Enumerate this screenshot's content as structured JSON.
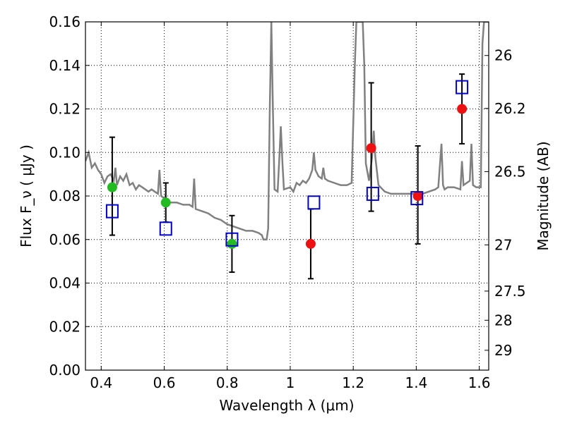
{
  "chart_data": {
    "type": "scatter",
    "xlabel": "Wavelength  λ (μm)",
    "ylabel": "Flux  F_ν  ( μJy )",
    "ylabel_right": "Magnitude (AB)",
    "xlim": [
      0.35,
      1.63
    ],
    "ylim": [
      0,
      0.16
    ],
    "grid": true,
    "x_ticks": [
      {
        "value": 0.4,
        "label": "0.4"
      },
      {
        "value": 0.6,
        "label": "0.6"
      },
      {
        "value": 0.8,
        "label": "0.8"
      },
      {
        "value": 1.0,
        "label": "1"
      },
      {
        "value": 1.2,
        "label": "1.2"
      },
      {
        "value": 1.4,
        "label": "1.4"
      },
      {
        "value": 1.6,
        "label": "1.6"
      }
    ],
    "y_ticks": [
      {
        "value": 0.0,
        "label": "0.00"
      },
      {
        "value": 0.02,
        "label": "0.02"
      },
      {
        "value": 0.04,
        "label": "0.04"
      },
      {
        "value": 0.06,
        "label": "0.06"
      },
      {
        "value": 0.08,
        "label": "0.08"
      },
      {
        "value": 0.1,
        "label": "0.10"
      },
      {
        "value": 0.12,
        "label": "0.12"
      },
      {
        "value": 0.14,
        "label": "0.14"
      },
      {
        "value": 0.16,
        "label": "0.16"
      }
    ],
    "right_ticks": [
      {
        "value": 26,
        "label": "26"
      },
      {
        "value": 26.2,
        "label": "26.2"
      },
      {
        "value": 26.5,
        "label": "26.5"
      },
      {
        "value": 27,
        "label": "27"
      },
      {
        "value": 27.5,
        "label": "27.5"
      },
      {
        "value": 28,
        "label": "28"
      },
      {
        "value": 29,
        "label": "29"
      }
    ],
    "spectrum": {
      "color": "#808080",
      "points": [
        [
          0.35,
          0.096
        ],
        [
          0.36,
          0.1
        ],
        [
          0.37,
          0.093
        ],
        [
          0.38,
          0.095
        ],
        [
          0.39,
          0.092
        ],
        [
          0.4,
          0.09
        ],
        [
          0.41,
          0.086
        ],
        [
          0.42,
          0.089
        ],
        [
          0.43,
          0.09
        ],
        [
          0.44,
          0.087
        ],
        [
          0.445,
          0.093
        ],
        [
          0.45,
          0.085
        ],
        [
          0.46,
          0.089
        ],
        [
          0.47,
          0.087
        ],
        [
          0.48,
          0.09
        ],
        [
          0.49,
          0.085
        ],
        [
          0.5,
          0.086
        ],
        [
          0.51,
          0.083
        ],
        [
          0.52,
          0.085
        ],
        [
          0.53,
          0.084
        ],
        [
          0.54,
          0.083
        ],
        [
          0.55,
          0.082
        ],
        [
          0.56,
          0.083
        ],
        [
          0.57,
          0.082
        ],
        [
          0.58,
          0.081
        ],
        [
          0.585,
          0.092
        ],
        [
          0.59,
          0.08
        ],
        [
          0.6,
          0.079
        ],
        [
          0.62,
          0.077
        ],
        [
          0.64,
          0.077
        ],
        [
          0.66,
          0.076
        ],
        [
          0.68,
          0.076
        ],
        [
          0.69,
          0.075
        ],
        [
          0.695,
          0.088
        ],
        [
          0.7,
          0.074
        ],
        [
          0.72,
          0.073
        ],
        [
          0.74,
          0.072
        ],
        [
          0.76,
          0.07
        ],
        [
          0.78,
          0.069
        ],
        [
          0.8,
          0.067
        ],
        [
          0.82,
          0.066
        ],
        [
          0.84,
          0.065
        ],
        [
          0.86,
          0.064
        ],
        [
          0.88,
          0.064
        ],
        [
          0.9,
          0.063
        ],
        [
          0.91,
          0.062
        ],
        [
          0.915,
          0.06
        ],
        [
          0.925,
          0.06
        ],
        [
          0.93,
          0.065
        ],
        [
          0.935,
          0.12
        ],
        [
          0.94,
          0.16
        ],
        [
          0.945,
          0.12
        ],
        [
          0.95,
          0.083
        ],
        [
          0.96,
          0.082
        ],
        [
          0.965,
          0.096
        ],
        [
          0.97,
          0.112
        ],
        [
          0.975,
          0.096
        ],
        [
          0.98,
          0.083
        ],
        [
          1.0,
          0.084
        ],
        [
          1.01,
          0.082
        ],
        [
          1.02,
          0.086
        ],
        [
          1.03,
          0.085
        ],
        [
          1.04,
          0.087
        ],
        [
          1.05,
          0.086
        ],
        [
          1.06,
          0.088
        ],
        [
          1.07,
          0.092
        ],
        [
          1.075,
          0.1
        ],
        [
          1.08,
          0.092
        ],
        [
          1.09,
          0.089
        ],
        [
          1.1,
          0.088
        ],
        [
          1.105,
          0.093
        ],
        [
          1.11,
          0.088
        ],
        [
          1.12,
          0.087
        ],
        [
          1.14,
          0.086
        ],
        [
          1.16,
          0.085
        ],
        [
          1.18,
          0.085
        ],
        [
          1.195,
          0.086
        ],
        [
          1.205,
          0.14
        ],
        [
          1.21,
          0.16
        ],
        [
          1.23,
          0.16
        ],
        [
          1.235,
          0.14
        ],
        [
          1.24,
          0.095
        ],
        [
          1.25,
          0.087
        ],
        [
          1.26,
          0.098
        ],
        [
          1.265,
          0.11
        ],
        [
          1.27,
          0.098
        ],
        [
          1.28,
          0.085
        ],
        [
          1.3,
          0.082
        ],
        [
          1.32,
          0.081
        ],
        [
          1.34,
          0.081
        ],
        [
          1.36,
          0.081
        ],
        [
          1.38,
          0.081
        ],
        [
          1.4,
          0.081
        ],
        [
          1.42,
          0.081
        ],
        [
          1.44,
          0.082
        ],
        [
          1.46,
          0.083
        ],
        [
          1.47,
          0.084
        ],
        [
          1.48,
          0.104
        ],
        [
          1.485,
          0.085
        ],
        [
          1.49,
          0.083
        ],
        [
          1.5,
          0.084
        ],
        [
          1.52,
          0.084
        ],
        [
          1.54,
          0.083
        ],
        [
          1.545,
          0.096
        ],
        [
          1.55,
          0.085
        ],
        [
          1.57,
          0.087
        ],
        [
          1.575,
          0.104
        ],
        [
          1.58,
          0.085
        ],
        [
          1.59,
          0.084
        ],
        [
          1.605,
          0.084
        ],
        [
          1.61,
          0.15
        ],
        [
          1.615,
          0.16
        ],
        [
          1.62,
          0.16
        ],
        [
          1.63,
          0.16
        ]
      ]
    },
    "measured_green": {
      "color": "#22bb22",
      "points": [
        {
          "x": 0.435,
          "y": 0.084,
          "err_low": 0.062,
          "err_high": 0.107
        },
        {
          "x": 0.605,
          "y": 0.077,
          "err_low": 0.068,
          "err_high": 0.086
        },
        {
          "x": 0.815,
          "y": 0.058,
          "err_low": 0.045,
          "err_high": 0.071
        }
      ]
    },
    "measured_red": {
      "color": "#ee1111",
      "points": [
        {
          "x": 1.065,
          "y": 0.058,
          "err_low": 0.042,
          "err_high": 0.074
        },
        {
          "x": 1.257,
          "y": 0.102,
          "err_low": 0.073,
          "err_high": 0.132
        },
        {
          "x": 1.405,
          "y": 0.08,
          "err_low": 0.058,
          "err_high": 0.103
        },
        {
          "x": 1.545,
          "y": 0.12,
          "err_low": 0.104,
          "err_high": 0.136
        }
      ]
    },
    "model_squares": {
      "color": "#0000cc",
      "points": [
        {
          "x": 0.435,
          "y": 0.073
        },
        {
          "x": 0.605,
          "y": 0.065
        },
        {
          "x": 0.815,
          "y": 0.06
        },
        {
          "x": 1.075,
          "y": 0.077
        },
        {
          "x": 1.262,
          "y": 0.081
        },
        {
          "x": 1.402,
          "y": 0.079
        },
        {
          "x": 1.545,
          "y": 0.13
        }
      ]
    }
  }
}
